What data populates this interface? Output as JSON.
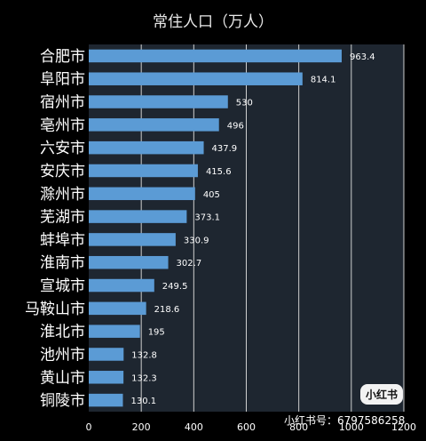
{
  "title": "常住人口（万人）",
  "colors": {
    "background": "#000000",
    "plot_background": "#1e2630",
    "bar": "#5b9bd5",
    "grid": "#d0d0d0",
    "text": "#ffffff"
  },
  "watermark": {
    "badge": "小红书",
    "id": "小红书号：6797586258"
  },
  "chart_data": {
    "type": "bar",
    "orientation": "horizontal",
    "title": "常住人口（万人）",
    "categories": [
      "合肥市",
      "阜阳市",
      "宿州市",
      "亳州市",
      "六安市",
      "安庆市",
      "滁州市",
      "芜湖市",
      "蚌埠市",
      "淮南市",
      "宣城市",
      "马鞍山市",
      "淮北市",
      "池州市",
      "黄山市",
      "铜陵市"
    ],
    "values": [
      963.4,
      814.1,
      530,
      496,
      437.9,
      415.6,
      405,
      373.1,
      330.9,
      302.7,
      249.5,
      218.6,
      195,
      132.8,
      132.3,
      130.1
    ],
    "value_labels": [
      "963.4",
      "814.1",
      "530",
      "496",
      "437.9",
      "415.6",
      "405",
      "373.1",
      "330.9",
      "302.7",
      "249.5",
      "218.6",
      "195",
      "132.8",
      "132.3",
      "130.1"
    ],
    "xlim": [
      0,
      1200
    ],
    "xticks": [
      "0",
      "200",
      "400",
      "600",
      "800",
      "1000",
      "1200"
    ],
    "grid": true,
    "data_labels": true
  }
}
